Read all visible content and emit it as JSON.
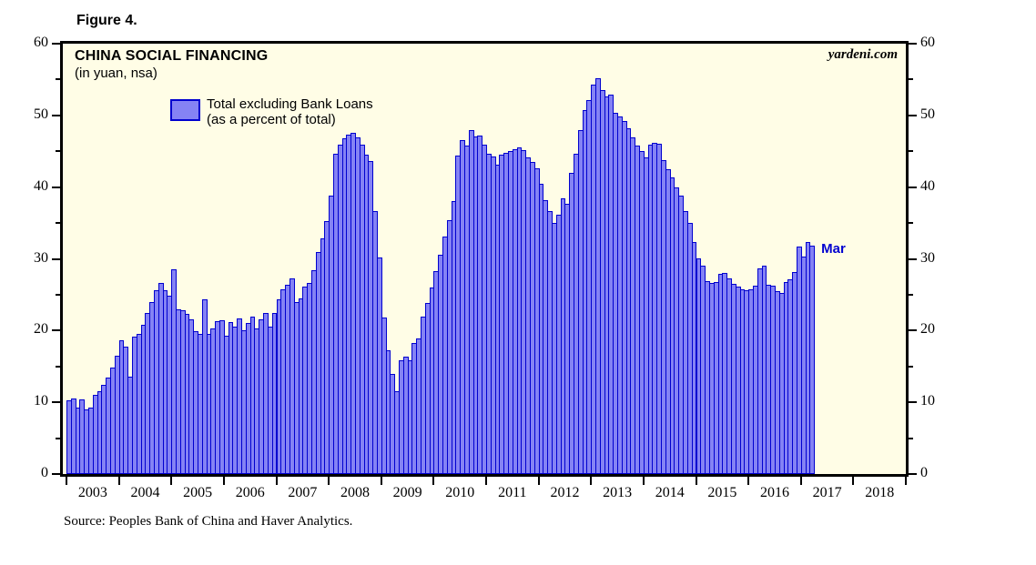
{
  "page": {
    "figure_label": "Figure 4.",
    "source": "Source: Peoples Bank of China and Haver Analytics."
  },
  "chart": {
    "title": "CHINA SOCIAL FINANCING",
    "subtitle": "(in yuan, nsa)",
    "watermark": "yardeni.com",
    "legend_line1": "Total excluding Bank Loans",
    "legend_line2": "(as a percent of total)",
    "annotation": "Mar"
  },
  "colors": {
    "plot_bg": "#fffde6",
    "bar_fill": "#8583f4",
    "bar_border": "#0000cf",
    "annotation_text": "#0000d0",
    "frame": "#000000"
  },
  "chart_data": {
    "type": "bar",
    "title": "CHINA SOCIAL FINANCING",
    "subtitle": "(in yuan, nsa)",
    "series_name": "Total excluding Bank Loans (as a percent of total)",
    "start_month": "2003-01",
    "end_month": "2017-03",
    "last_point_label": "Mar",
    "ylim": [
      0,
      60
    ],
    "y_major_ticks": [
      0,
      10,
      20,
      30,
      40,
      50,
      60
    ],
    "y_minor_ticks": [
      5,
      15,
      25,
      35,
      45,
      55
    ],
    "x_axis_years": [
      "2003",
      "2004",
      "2005",
      "2006",
      "2007",
      "2008",
      "2009",
      "2010",
      "2011",
      "2012",
      "2013",
      "2014",
      "2015",
      "2016",
      "2017",
      "2018"
    ],
    "grid": false,
    "legend_position": "top-left-inside",
    "values": [
      10.3,
      10.5,
      9.2,
      10.4,
      9.0,
      9.3,
      11.0,
      11.6,
      12.4,
      13.5,
      14.8,
      16.5,
      18.7,
      17.8,
      13.6,
      19.2,
      19.5,
      20.8,
      22.5,
      24.0,
      25.6,
      26.6,
      25.6,
      24.9,
      28.6,
      22.9,
      22.8,
      22.3,
      21.6,
      19.9,
      19.6,
      24.4,
      19.6,
      20.3,
      21.3,
      21.4,
      19.3,
      21.2,
      20.6,
      21.7,
      20.0,
      21.1,
      21.9,
      20.3,
      21.6,
      22.4,
      20.5,
      22.5,
      24.3,
      25.8,
      26.4,
      27.3,
      24.0,
      24.5,
      26.1,
      26.7,
      28.4,
      30.9,
      32.9,
      35.3,
      38.8,
      44.6,
      45.9,
      46.8,
      47.3,
      47.6,
      46.9,
      45.9,
      44.5,
      43.6,
      36.6,
      30.2,
      21.8,
      17.2,
      14.0,
      11.5,
      15.9,
      16.4,
      15.9,
      18.3,
      18.9,
      22.0,
      23.9,
      26.0,
      28.3,
      30.6,
      33.1,
      35.4,
      38.1,
      44.4,
      46.6,
      45.8,
      47.9,
      47.1,
      47.2,
      45.9,
      44.7,
      44.3,
      43.1,
      44.5,
      44.8,
      45.0,
      45.3,
      45.5,
      45.1,
      44.1,
      43.5,
      42.6,
      40.5,
      38.2,
      36.7,
      35.0,
      36.1,
      38.4,
      37.7,
      42.0,
      44.6,
      48.0,
      50.7,
      52.2,
      54.3,
      55.2,
      53.5,
      52.6,
      52.9,
      50.3,
      49.9,
      49.2,
      48.2,
      46.9,
      45.8,
      45.0,
      44.2,
      45.9,
      46.2,
      46.0,
      43.8,
      42.5,
      41.3,
      40.0,
      38.8,
      36.7,
      35.0,
      32.3,
      30.1,
      29.1,
      26.9,
      26.6,
      26.8,
      27.9,
      28.0,
      27.3,
      26.5,
      26.1,
      25.8,
      25.6,
      25.7,
      26.2,
      28.7,
      29.1,
      26.4,
      26.2,
      25.5,
      25.3,
      26.8,
      27.1,
      28.2,
      31.7,
      30.3,
      32.3,
      31.9
    ]
  }
}
